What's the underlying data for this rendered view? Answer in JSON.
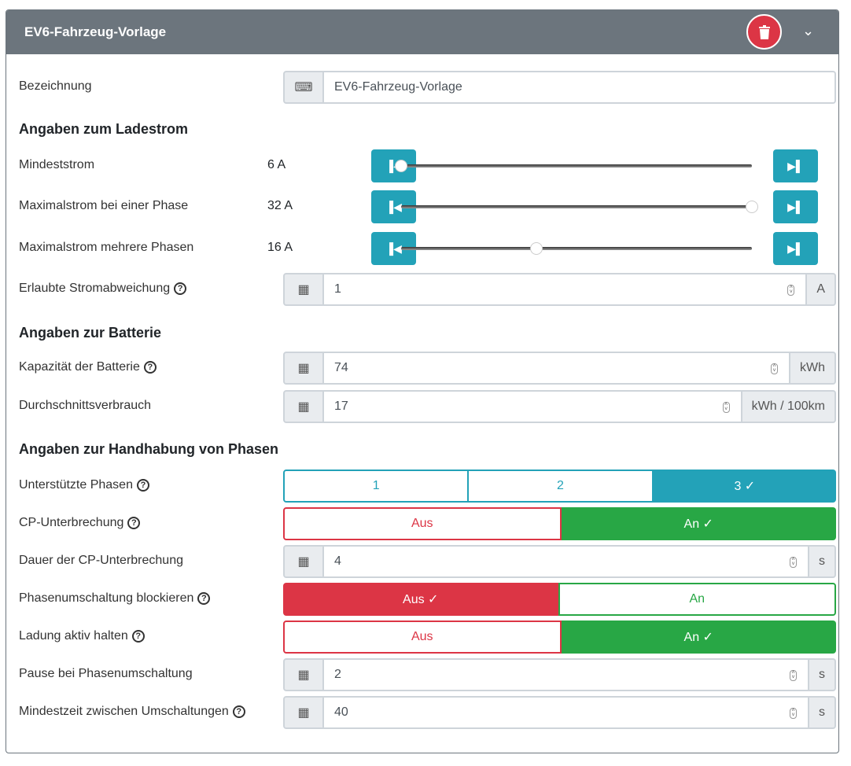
{
  "header": {
    "title": "EV6-Fahrzeug-Vorlage",
    "delete_icon": "trash-icon",
    "collapse_icon": "chevron-down-icon"
  },
  "name": {
    "label": "Bezeichnung",
    "value": "EV6-Fahrzeug-Vorlage"
  },
  "sections": {
    "current": "Angaben zum Ladestrom",
    "battery": "Angaben zur Batterie",
    "phases": "Angaben zur Handhabung von Phasen"
  },
  "sliders": [
    {
      "label": "Mindeststrom",
      "display": "6 A",
      "value": 6,
      "min": 6,
      "max": 32
    },
    {
      "label": "Maximalstrom bei einer Phase",
      "display": "32 A",
      "value": 32,
      "min": 6,
      "max": 32
    },
    {
      "label": "Maximalstrom mehrere Phasen",
      "display": "16 A",
      "value": 16,
      "min": 6,
      "max": 32
    }
  ],
  "deviation": {
    "label": "Erlaubte Stromabweichung",
    "value": "1",
    "unit": "A"
  },
  "capacity": {
    "label": "Kapazität der Batterie",
    "value": "74",
    "unit": "kWh"
  },
  "consumption": {
    "label": "Durchschnittsverbrauch",
    "value": "17",
    "unit": "kWh / 100km"
  },
  "phases": {
    "label": "Unterstützte Phasen",
    "options": [
      "1",
      "2",
      "3 ✓"
    ],
    "selected": "3"
  },
  "cp_interrupt": {
    "label": "CP-Unterbrechung",
    "off": "Aus",
    "on": "An ✓",
    "selected": "An"
  },
  "cp_duration": {
    "label": "Dauer der CP-Unterbrechung",
    "value": "4",
    "unit": "s"
  },
  "block_switch": {
    "label": "Phasenumschaltung blockieren",
    "off": "Aus ✓",
    "on": "An",
    "selected": "Aus"
  },
  "keep_charging": {
    "label": "Ladung aktiv halten",
    "off": "Aus",
    "on": "An ✓",
    "selected": "An"
  },
  "switch_pause": {
    "label": "Pause bei Phasenumschaltung",
    "value": "2",
    "unit": "s"
  },
  "min_time": {
    "label": "Mindestzeit zwischen Umschaltungen",
    "value": "40",
    "unit": "s"
  },
  "colors": {
    "header": "#6c757d",
    "accent": "#23a2b8",
    "success": "#28a745",
    "danger": "#dc3545"
  }
}
